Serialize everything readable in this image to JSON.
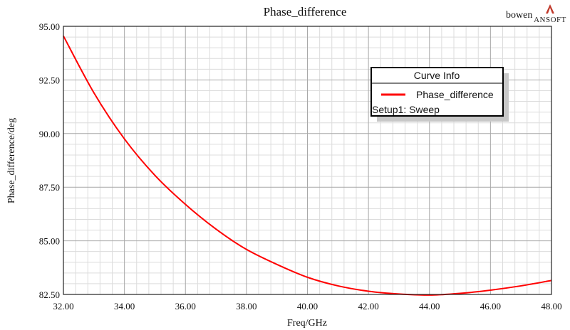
{
  "chart_data": {
    "type": "line",
    "title": "Phase_difference",
    "xlabel": "Freq/GHz",
    "ylabel": "Phase_difference/deg",
    "xlim": [
      32,
      48
    ],
    "ylim": [
      82.5,
      95
    ],
    "x_ticks": [
      "32.00",
      "34.00",
      "36.00",
      "38.00",
      "40.00",
      "42.00",
      "44.00",
      "46.00",
      "48.00"
    ],
    "y_ticks": [
      "82.50",
      "85.00",
      "87.50",
      "90.00",
      "92.50",
      "95.00"
    ],
    "grid": true,
    "series": [
      {
        "name": "Phase_difference",
        "color": "#ff0000",
        "x": [
          32,
          33,
          34,
          35,
          36,
          37,
          38,
          39,
          40,
          41,
          42,
          43,
          44,
          45,
          46,
          47,
          48
        ],
        "y": [
          94.55,
          91.9,
          89.75,
          88.05,
          86.7,
          85.55,
          84.6,
          83.9,
          83.3,
          82.9,
          82.65,
          82.52,
          82.47,
          82.55,
          82.7,
          82.9,
          83.15
        ]
      }
    ],
    "legend": {
      "title": "Curve Info",
      "entries": [
        "Phase_difference"
      ],
      "note": "Setup1: Sweep",
      "placement": "top-right"
    }
  },
  "branding": {
    "user": "bowen",
    "logo_text": "ANSOFT"
  }
}
